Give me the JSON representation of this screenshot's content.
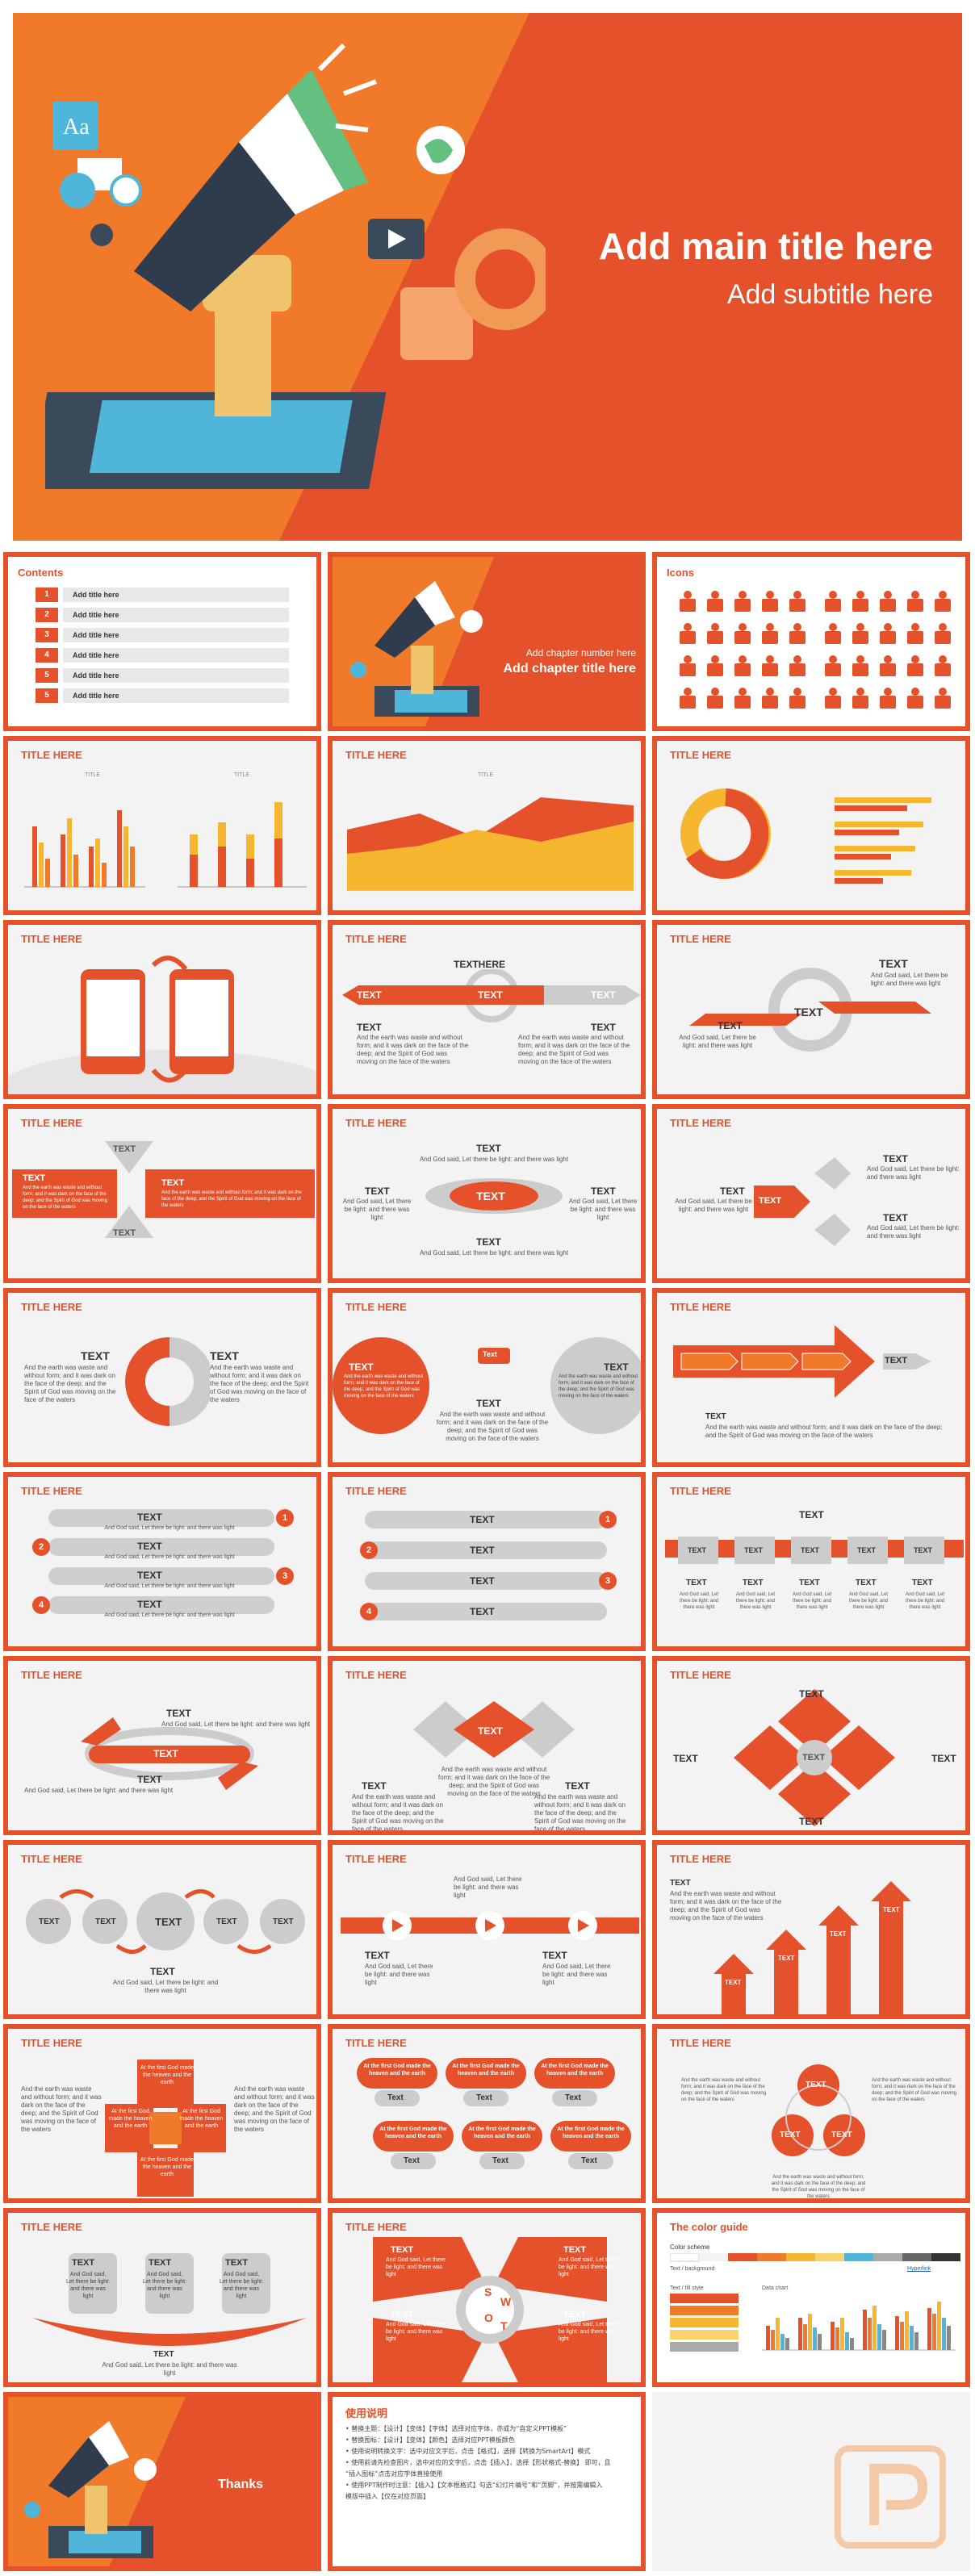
{
  "colors": {
    "accent": "#e4512a",
    "accent_dark": "#c9401c",
    "yellow": "#f6b630",
    "grey": "#cccccc",
    "light": "#f3f3f3"
  },
  "cover": {
    "title": "Add main title here",
    "subtitle": "Add subtitle here"
  },
  "contents": {
    "heading": "Contents",
    "items": [
      {
        "num": "1",
        "label": "Add title here"
      },
      {
        "num": "2",
        "label": "Add title here"
      },
      {
        "num": "3",
        "label": "Add title here"
      },
      {
        "num": "4",
        "label": "Add title here"
      },
      {
        "num": "5",
        "label": "Add title here"
      },
      {
        "num": "5",
        "label": "Add title here"
      }
    ]
  },
  "chapter": {
    "number": "Add chapter number here",
    "title": "Add chapter title here"
  },
  "icons_slide": {
    "heading": "Icons"
  },
  "common": {
    "slide_title": "TITLE HERE",
    "text": "TEXT",
    "text_here": "TEXTHERE",
    "text_lower": "Text",
    "chart_title": "TITLE"
  },
  "body": {
    "gen_long": "And the earth was waste and without form; and it was dark on the face of the deep; and the Spirit of God was moving on the face of the waters",
    "gen_short": "And God said, Let there be light: and there was light",
    "gen_firstday": "At the first God made the heaven and the earth"
  },
  "color_guide": {
    "heading": "The color guide",
    "scheme_label": "Color scheme",
    "text_label": "Text / background",
    "text_fill": "Text / fill style",
    "chart_label": "Data chart",
    "hyperlink": "Hyperlink"
  },
  "thanks": {
    "label": "Thanks"
  },
  "instructions": {
    "heading": "使用说明",
    "lines": [
      "• 替换主题：【设计】【变体】【字体】选择对应字体，亦或为“自定义PPT模板”",
      "• 替换图标：【设计】【变体】【颜色】选择对应PPT模板颜色",
      "• 使用说明转换文字：选中对应文字后，点击【格式】，选择【转换为SmartArt】模式",
      "• 使用前请先检查图片，选中对应的文字后，点击【插入】，选择【形状格式-替换】 即可，且",
      "  “插入图标”点击对应字体直接使用",
      "• 使用PPT制作时注意：【插入】【文本框格式】勾选“幻灯片编号”和“页脚”，并按需编辑入",
      "  模版中插入【仅在对应页面】"
    ]
  }
}
